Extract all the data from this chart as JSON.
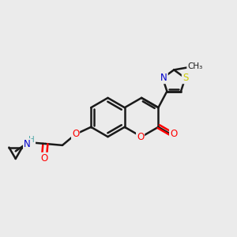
{
  "background_color": "#ebebeb",
  "bond_color": "#1a1a1a",
  "atom_colors": {
    "O": "#ff0000",
    "N": "#0000cc",
    "S": "#cccc00",
    "H": "#4da6a6",
    "C": "#1a1a1a"
  },
  "bond_width": 1.8,
  "figsize": [
    3.0,
    3.0
  ],
  "dpi": 100,
  "xlim": [
    0,
    10
  ],
  "ylim": [
    0,
    10
  ]
}
